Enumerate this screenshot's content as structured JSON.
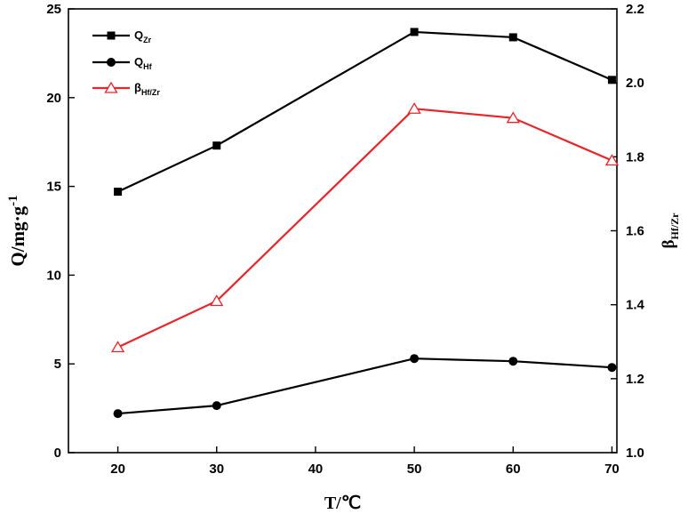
{
  "chart_data": {
    "type": "line",
    "title": "",
    "x": [
      20,
      30,
      50,
      60,
      70
    ],
    "xlabel": "T/℃",
    "xlim": [
      15,
      70.5
    ],
    "xticks": [
      20,
      30,
      40,
      50,
      60,
      70
    ],
    "ylabel_left": "Q/mg·g-1",
    "ylabel_left_parts": {
      "main": "Q/mg·g",
      "sup": "-1"
    },
    "ylim_left": [
      0,
      25
    ],
    "yticks_left": [
      0,
      5,
      10,
      15,
      20,
      25
    ],
    "ylabel_right": "βHf/Zr",
    "ylabel_right_parts": {
      "main": "β",
      "sub": "Hf/Zr"
    },
    "ylim_right": [
      1.0,
      2.2
    ],
    "yticks_right": [
      1.0,
      1.2,
      1.4,
      1.6,
      1.8,
      2.0,
      2.2
    ],
    "series": [
      {
        "name": "QZr",
        "legend_main": "Q",
        "legend_sub": "Zr",
        "axis": "left",
        "marker": "square",
        "color": "#000000",
        "values": [
          14.7,
          17.3,
          23.7,
          23.4,
          21.0
        ]
      },
      {
        "name": "QHf",
        "legend_main": "Q",
        "legend_sub": "Hf",
        "axis": "left",
        "marker": "circle",
        "color": "#000000",
        "values": [
          2.2,
          2.65,
          5.3,
          5.15,
          4.8
        ]
      },
      {
        "name": "βHf/Zr",
        "legend_main": "β",
        "legend_sub": "Hf/Zr",
        "axis": "right",
        "marker": "triangle-open",
        "color": "#e8252a",
        "values": [
          1.285,
          1.41,
          1.93,
          1.905,
          1.79
        ]
      }
    ],
    "legend_position": "top-left",
    "grid": false
  }
}
